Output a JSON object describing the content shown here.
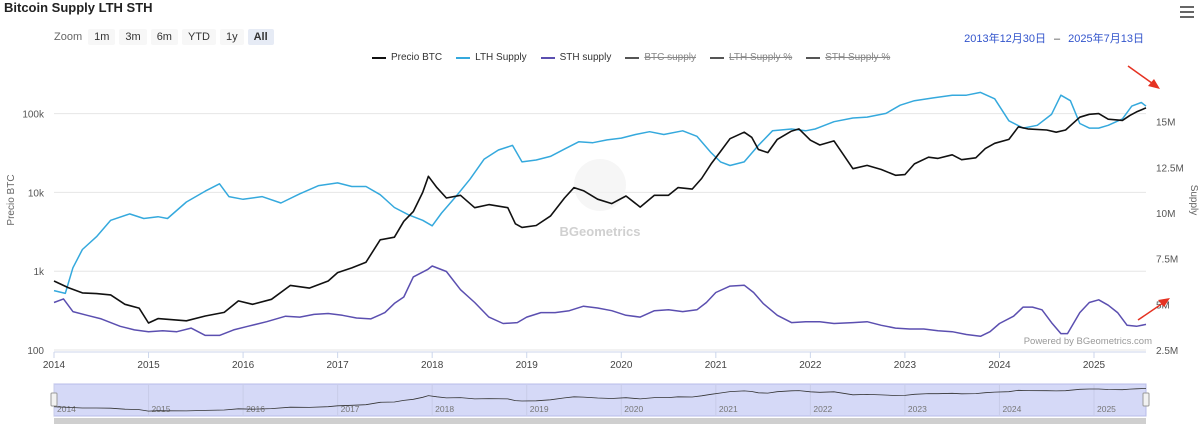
{
  "title": "Bitcoin Supply LTH STH",
  "zoom": {
    "label": "Zoom",
    "buttons": [
      "1m",
      "3m",
      "6m",
      "YTD",
      "1y",
      "All"
    ],
    "active": "All"
  },
  "date_range": {
    "from": "2013年12月30日",
    "separator": "–",
    "to": "2025年7月13日"
  },
  "credits": "Powered by BGeometrics.com",
  "watermark": "BGeometrics",
  "colors": {
    "price": "#111111",
    "lth": "#35a9dd",
    "sth": "#5b4fb0",
    "hidden": "#999999",
    "annotation": "#e53222",
    "navigator_fill": "#d5d9f7"
  },
  "chart_data": {
    "type": "line",
    "x_label": "",
    "y_left_label": "Precio BTC",
    "y_right_label": "Supply",
    "x_ticks": [
      "2014",
      "2015",
      "2016",
      "2017",
      "2018",
      "2019",
      "2020",
      "2021",
      "2022",
      "2023",
      "2024",
      "2025"
    ],
    "y_left_ticks": [
      "100",
      "1k",
      "10k",
      "100k"
    ],
    "y_left_scale": "log",
    "y_left_range": [
      100,
      300000
    ],
    "y_right_ticks": [
      "2.5M",
      "5M",
      "7.5M",
      "10M",
      "12.5M",
      "15M"
    ],
    "y_right_range": [
      2500000,
      17500000
    ],
    "x_range": [
      2014.0,
      2025.55
    ],
    "grid": true,
    "legend": [
      {
        "name": "Precio BTC",
        "color": "#111111",
        "visible": true
      },
      {
        "name": "LTH Supply",
        "color": "#35a9dd",
        "visible": true
      },
      {
        "name": "STH supply",
        "color": "#5b4fb0",
        "visible": true
      },
      {
        "name": "BTC supply",
        "color": "#555555",
        "visible": false
      },
      {
        "name": "LTH Supply %",
        "color": "#555555",
        "visible": false
      },
      {
        "name": "STH Supply %",
        "color": "#555555",
        "visible": false
      }
    ],
    "legend_position": "top-center",
    "series": [
      {
        "name": "Precio BTC",
        "axis": "left",
        "points": [
          [
            2014.0,
            750
          ],
          [
            2014.15,
            620
          ],
          [
            2014.3,
            530
          ],
          [
            2014.45,
            520
          ],
          [
            2014.6,
            500
          ],
          [
            2014.75,
            380
          ],
          [
            2014.9,
            340
          ],
          [
            2015.0,
            220
          ],
          [
            2015.1,
            250
          ],
          [
            2015.2,
            245
          ],
          [
            2015.4,
            235
          ],
          [
            2015.6,
            270
          ],
          [
            2015.8,
            300
          ],
          [
            2015.95,
            420
          ],
          [
            2016.1,
            380
          ],
          [
            2016.3,
            440
          ],
          [
            2016.5,
            660
          ],
          [
            2016.7,
            610
          ],
          [
            2016.9,
            750
          ],
          [
            2017.0,
            960
          ],
          [
            2017.15,
            1100
          ],
          [
            2017.3,
            1300
          ],
          [
            2017.45,
            2500
          ],
          [
            2017.6,
            2700
          ],
          [
            2017.7,
            4300
          ],
          [
            2017.8,
            5700
          ],
          [
            2017.9,
            10000
          ],
          [
            2017.96,
            16000
          ],
          [
            2018.05,
            11500
          ],
          [
            2018.15,
            8500
          ],
          [
            2018.3,
            9200
          ],
          [
            2018.45,
            6400
          ],
          [
            2018.6,
            7000
          ],
          [
            2018.8,
            6400
          ],
          [
            2018.88,
            4000
          ],
          [
            2018.95,
            3600
          ],
          [
            2019.1,
            3800
          ],
          [
            2019.25,
            5000
          ],
          [
            2019.4,
            8500
          ],
          [
            2019.5,
            11500
          ],
          [
            2019.6,
            10500
          ],
          [
            2019.75,
            8200
          ],
          [
            2019.9,
            7200
          ],
          [
            2020.05,
            9000
          ],
          [
            2020.2,
            6500
          ],
          [
            2020.35,
            9200
          ],
          [
            2020.5,
            9200
          ],
          [
            2020.6,
            11500
          ],
          [
            2020.75,
            11000
          ],
          [
            2020.85,
            15000
          ],
          [
            2020.95,
            23000
          ],
          [
            2021.05,
            33000
          ],
          [
            2021.15,
            48000
          ],
          [
            2021.3,
            58000
          ],
          [
            2021.38,
            50000
          ],
          [
            2021.45,
            35000
          ],
          [
            2021.55,
            32000
          ],
          [
            2021.65,
            47000
          ],
          [
            2021.8,
            60000
          ],
          [
            2021.88,
            64000
          ],
          [
            2022.0,
            46000
          ],
          [
            2022.1,
            40000
          ],
          [
            2022.25,
            45000
          ],
          [
            2022.35,
            30000
          ],
          [
            2022.45,
            20000
          ],
          [
            2022.6,
            22000
          ],
          [
            2022.75,
            19500
          ],
          [
            2022.9,
            16500
          ],
          [
            2023.0,
            16800
          ],
          [
            2023.1,
            23000
          ],
          [
            2023.25,
            28000
          ],
          [
            2023.35,
            27000
          ],
          [
            2023.5,
            30000
          ],
          [
            2023.6,
            26000
          ],
          [
            2023.75,
            27500
          ],
          [
            2023.85,
            36000
          ],
          [
            2023.95,
            42000
          ],
          [
            2024.1,
            47000
          ],
          [
            2024.2,
            68000
          ],
          [
            2024.3,
            64000
          ],
          [
            2024.5,
            62000
          ],
          [
            2024.6,
            58000
          ],
          [
            2024.7,
            62000
          ],
          [
            2024.85,
            90000
          ],
          [
            2024.95,
            98000
          ],
          [
            2025.05,
            100000
          ],
          [
            2025.15,
            85000
          ],
          [
            2025.3,
            82000
          ],
          [
            2025.38,
            95000
          ],
          [
            2025.45,
            105000
          ],
          [
            2025.55,
            118000
          ]
        ]
      },
      {
        "name": "LTH Supply",
        "axis": "right",
        "points": [
          [
            2014.0,
            5750000
          ],
          [
            2014.12,
            5600000
          ],
          [
            2014.2,
            7000000
          ],
          [
            2014.3,
            8000000
          ],
          [
            2014.45,
            8700000
          ],
          [
            2014.6,
            9600000
          ],
          [
            2014.8,
            9950000
          ],
          [
            2014.95,
            9700000
          ],
          [
            2015.1,
            9800000
          ],
          [
            2015.2,
            9700000
          ],
          [
            2015.4,
            10600000
          ],
          [
            2015.6,
            11200000
          ],
          [
            2015.75,
            11600000
          ],
          [
            2015.85,
            10900000
          ],
          [
            2016.0,
            10750000
          ],
          [
            2016.2,
            10900000
          ],
          [
            2016.4,
            10550000
          ],
          [
            2016.6,
            11050000
          ],
          [
            2016.8,
            11500000
          ],
          [
            2017.0,
            11650000
          ],
          [
            2017.15,
            11450000
          ],
          [
            2017.3,
            11450000
          ],
          [
            2017.45,
            11000000
          ],
          [
            2017.6,
            10300000
          ],
          [
            2017.75,
            9900000
          ],
          [
            2017.9,
            9600000
          ],
          [
            2018.0,
            9300000
          ],
          [
            2018.1,
            10000000
          ],
          [
            2018.25,
            10900000
          ],
          [
            2018.4,
            11850000
          ],
          [
            2018.55,
            12950000
          ],
          [
            2018.7,
            13450000
          ],
          [
            2018.85,
            13700000
          ],
          [
            2018.95,
            12800000
          ],
          [
            2019.1,
            12900000
          ],
          [
            2019.25,
            13100000
          ],
          [
            2019.4,
            13500000
          ],
          [
            2019.55,
            13900000
          ],
          [
            2019.7,
            13850000
          ],
          [
            2019.85,
            14000000
          ],
          [
            2020.0,
            14100000
          ],
          [
            2020.15,
            14300000
          ],
          [
            2020.3,
            14450000
          ],
          [
            2020.45,
            14300000
          ],
          [
            2020.65,
            14500000
          ],
          [
            2020.8,
            14200000
          ],
          [
            2020.95,
            13300000
          ],
          [
            2021.05,
            12800000
          ],
          [
            2021.15,
            12600000
          ],
          [
            2021.3,
            12800000
          ],
          [
            2021.45,
            13700000
          ],
          [
            2021.6,
            14500000
          ],
          [
            2021.8,
            14600000
          ],
          [
            2021.95,
            14500000
          ],
          [
            2022.05,
            14600000
          ],
          [
            2022.25,
            15000000
          ],
          [
            2022.45,
            15200000
          ],
          [
            2022.6,
            15250000
          ],
          [
            2022.8,
            15450000
          ],
          [
            2022.95,
            15900000
          ],
          [
            2023.1,
            16150000
          ],
          [
            2023.3,
            16300000
          ],
          [
            2023.5,
            16450000
          ],
          [
            2023.65,
            16450000
          ],
          [
            2023.8,
            16600000
          ],
          [
            2023.95,
            16250000
          ],
          [
            2024.1,
            15050000
          ],
          [
            2024.25,
            14650000
          ],
          [
            2024.4,
            14800000
          ],
          [
            2024.55,
            15400000
          ],
          [
            2024.65,
            16450000
          ],
          [
            2024.75,
            16150000
          ],
          [
            2024.85,
            14900000
          ],
          [
            2024.95,
            14650000
          ],
          [
            2025.05,
            14650000
          ],
          [
            2025.15,
            14800000
          ],
          [
            2025.3,
            15150000
          ],
          [
            2025.4,
            15850000
          ],
          [
            2025.5,
            16050000
          ],
          [
            2025.55,
            15850000
          ]
        ]
      },
      {
        "name": "STH supply",
        "axis": "right",
        "points": [
          [
            2014.0,
            5100000
          ],
          [
            2014.1,
            5300000
          ],
          [
            2014.2,
            4600000
          ],
          [
            2014.35,
            4400000
          ],
          [
            2014.5,
            4200000
          ],
          [
            2014.7,
            3800000
          ],
          [
            2014.85,
            3600000
          ],
          [
            2015.0,
            3500000
          ],
          [
            2015.15,
            3550000
          ],
          [
            2015.3,
            3500000
          ],
          [
            2015.45,
            3700000
          ],
          [
            2015.6,
            3300000
          ],
          [
            2015.75,
            3300000
          ],
          [
            2015.9,
            3600000
          ],
          [
            2016.05,
            3800000
          ],
          [
            2016.25,
            4050000
          ],
          [
            2016.45,
            4350000
          ],
          [
            2016.6,
            4300000
          ],
          [
            2016.75,
            4450000
          ],
          [
            2016.9,
            4500000
          ],
          [
            2017.05,
            4400000
          ],
          [
            2017.2,
            4250000
          ],
          [
            2017.35,
            4200000
          ],
          [
            2017.5,
            4550000
          ],
          [
            2017.6,
            5050000
          ],
          [
            2017.7,
            5400000
          ],
          [
            2017.8,
            6500000
          ],
          [
            2017.95,
            6900000
          ],
          [
            2018.0,
            7100000
          ],
          [
            2018.15,
            6800000
          ],
          [
            2018.3,
            5800000
          ],
          [
            2018.45,
            5100000
          ],
          [
            2018.6,
            4300000
          ],
          [
            2018.75,
            3950000
          ],
          [
            2018.9,
            4000000
          ],
          [
            2019.0,
            4300000
          ],
          [
            2019.15,
            4550000
          ],
          [
            2019.3,
            4550000
          ],
          [
            2019.45,
            4650000
          ],
          [
            2019.6,
            4900000
          ],
          [
            2019.75,
            4800000
          ],
          [
            2019.9,
            4650000
          ],
          [
            2020.05,
            4400000
          ],
          [
            2020.2,
            4300000
          ],
          [
            2020.35,
            4650000
          ],
          [
            2020.5,
            4700000
          ],
          [
            2020.65,
            4600000
          ],
          [
            2020.8,
            4700000
          ],
          [
            2020.9,
            5100000
          ],
          [
            2021.0,
            5650000
          ],
          [
            2021.15,
            6000000
          ],
          [
            2021.3,
            6050000
          ],
          [
            2021.4,
            5650000
          ],
          [
            2021.5,
            5050000
          ],
          [
            2021.65,
            4400000
          ],
          [
            2021.8,
            4000000
          ],
          [
            2021.95,
            4050000
          ],
          [
            2022.1,
            4050000
          ],
          [
            2022.25,
            3950000
          ],
          [
            2022.45,
            4000000
          ],
          [
            2022.6,
            4050000
          ],
          [
            2022.75,
            3850000
          ],
          [
            2022.9,
            3700000
          ],
          [
            2023.05,
            3650000
          ],
          [
            2023.2,
            3650000
          ],
          [
            2023.35,
            3550000
          ],
          [
            2023.5,
            3500000
          ],
          [
            2023.65,
            3350000
          ],
          [
            2023.8,
            3250000
          ],
          [
            2023.9,
            3500000
          ],
          [
            2024.0,
            3950000
          ],
          [
            2024.15,
            4350000
          ],
          [
            2024.25,
            4850000
          ],
          [
            2024.35,
            4850000
          ],
          [
            2024.45,
            4700000
          ],
          [
            2024.55,
            4000000
          ],
          [
            2024.65,
            3400000
          ],
          [
            2024.72,
            3400000
          ],
          [
            2024.85,
            4550000
          ],
          [
            2024.95,
            5100000
          ],
          [
            2025.05,
            5250000
          ],
          [
            2025.15,
            4950000
          ],
          [
            2025.25,
            4550000
          ],
          [
            2025.35,
            3850000
          ],
          [
            2025.45,
            3800000
          ],
          [
            2025.55,
            3900000
          ]
        ]
      }
    ]
  },
  "navigator": {
    "x_ticks": [
      "2014",
      "2015",
      "2016",
      "2017",
      "2018",
      "2019",
      "2020",
      "2021",
      "2022",
      "2023",
      "2024",
      "2025"
    ]
  }
}
